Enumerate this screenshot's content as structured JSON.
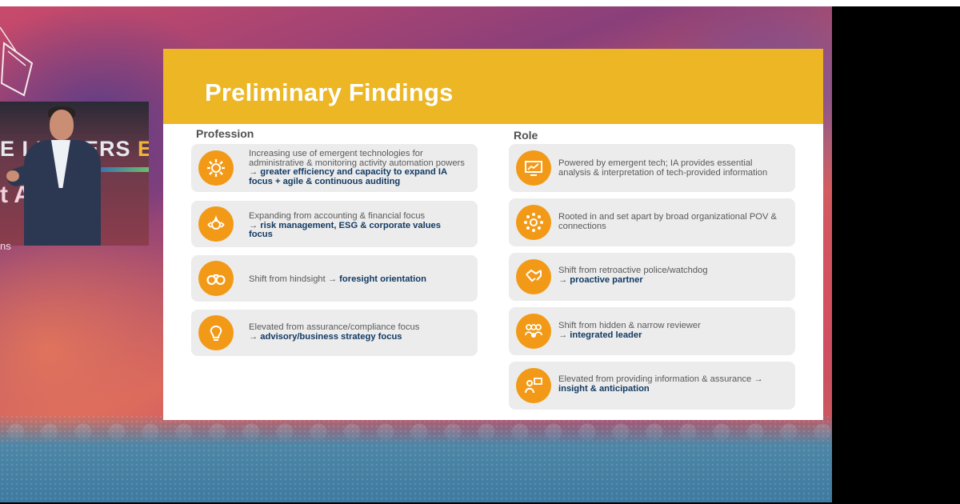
{
  "speaker_panel": {
    "banner_line1_a": "E LEADERS ",
    "banner_line1_b": "EVOL",
    "banner_line2": "t A    Minc",
    "caption": "ns"
  },
  "slide": {
    "title": "Preliminary Findings",
    "profession_header": "Profession",
    "role_header": "Role",
    "profession_items": [
      {
        "icon": "gear-icon",
        "text": "Increasing use of emergent technologies for administrative & monitoring activity automation powers",
        "arrow": " → ",
        "bold": "greater efficiency and capacity to expand IA focus + agile & continuous auditing"
      },
      {
        "icon": "compass-icon",
        "text": "Expanding from accounting & financial focus",
        "arrow": "→ ",
        "bold": "risk management, ESG & corporate values focus"
      },
      {
        "icon": "binoculars-icon",
        "text": "Shift from hindsight",
        "arrow": " → ",
        "bold": "foresight orientation"
      },
      {
        "icon": "lightbulb-icon",
        "text": "Elevated from assurance/compliance focus",
        "arrow": "→ ",
        "bold": "advisory/business strategy focus"
      }
    ],
    "role_items": [
      {
        "icon": "monitor-chart-icon",
        "text": "Powered by emergent tech; IA provides essential analysis & interpretation of tech-provided information",
        "arrow": "",
        "bold": ""
      },
      {
        "icon": "network-icon",
        "text": "Rooted in and set apart by broad organizational POV & connections",
        "arrow": "",
        "bold": ""
      },
      {
        "icon": "handshake-icon",
        "text": "Shift from retroactive police/watchdog",
        "arrow": "→ ",
        "bold": "proactive partner"
      },
      {
        "icon": "team-icon",
        "text": "Shift from hidden & narrow reviewer",
        "arrow": "→ ",
        "bold": "integrated leader"
      },
      {
        "icon": "presenter-icon",
        "text": "Elevated from providing information & assurance →",
        "arrow": "",
        "bold": "insight & anticipation"
      }
    ]
  },
  "colors": {
    "header": "#ecb625",
    "icon_circle": "#f29a17",
    "bold_text": "#123a63",
    "card_bg": "#ececec"
  }
}
